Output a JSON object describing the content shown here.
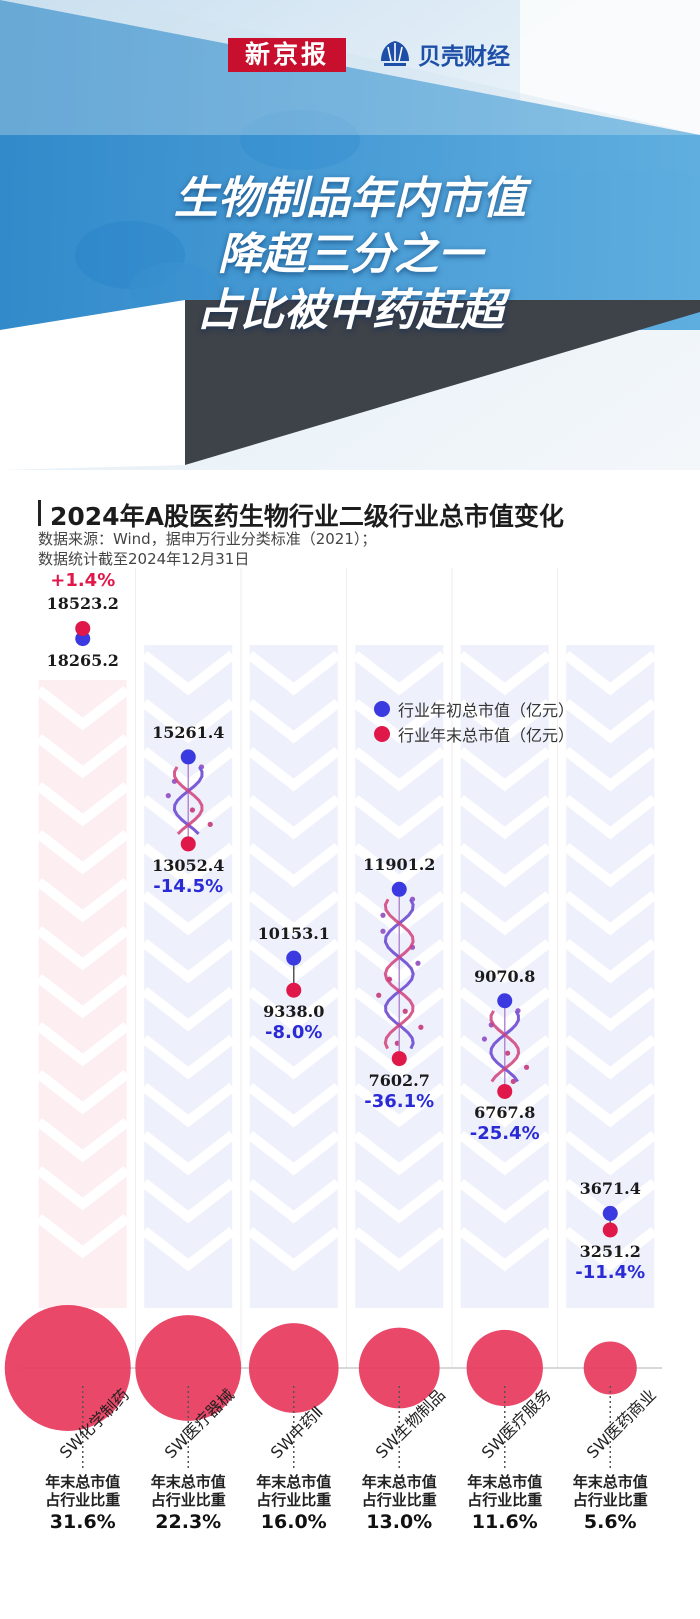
{
  "header": {
    "logo_left": "新京报",
    "logo_right": "贝壳财经",
    "headline": [
      "生物制品年内市值",
      "降超三分之一",
      "占比被中药赶超"
    ]
  },
  "section": {
    "title": "2024年A股医药生物行业二级行业总市值变化",
    "source_note": "数据来源：Wind，据申万行业分类标准（2021）；",
    "date_note": "数据统计截至2024年12月31日"
  },
  "legend": {
    "start": "行业年初总市值（亿元）",
    "end": "行业年末总市值（亿元）"
  },
  "share_label": [
    "年末总市值",
    "占行业比重"
  ],
  "colors": {
    "start": "#3a3ae0",
    "end": "#e0184a",
    "up": "#e0184a",
    "down": "#2b2bd6",
    "bubble": "#e8385c",
    "column_down": "#eef0fb",
    "column_up": "#fdeef1"
  },
  "chart_data": {
    "type": "scatter",
    "unit": "亿元",
    "categories": [
      "SW化学制药",
      "SW医疗器械",
      "SW中药Ⅱ",
      "SW生物制品",
      "SW医疗服务",
      "SW医药商业"
    ],
    "series": [
      {
        "name": "行业年初总市值（亿元）",
        "values": [
          18265.2,
          15261.4,
          10153.1,
          11901.2,
          9070.8,
          3671.4
        ]
      },
      {
        "name": "行业年末总市值（亿元）",
        "values": [
          18523.2,
          13052.4,
          9338.0,
          7602.7,
          6767.8,
          3251.2
        ]
      }
    ],
    "change": [
      "+1.4%",
      "-14.5%",
      "-8.0%",
      "-36.1%",
      "-25.4%",
      "-11.4%"
    ],
    "share": [
      "31.6%",
      "22.3%",
      "16.0%",
      "13.0%",
      "11.6%",
      "5.6%"
    ],
    "share_values": [
      31.6,
      22.3,
      16.0,
      13.0,
      11.6,
      5.6
    ],
    "ylim": [
      0,
      19500
    ]
  }
}
